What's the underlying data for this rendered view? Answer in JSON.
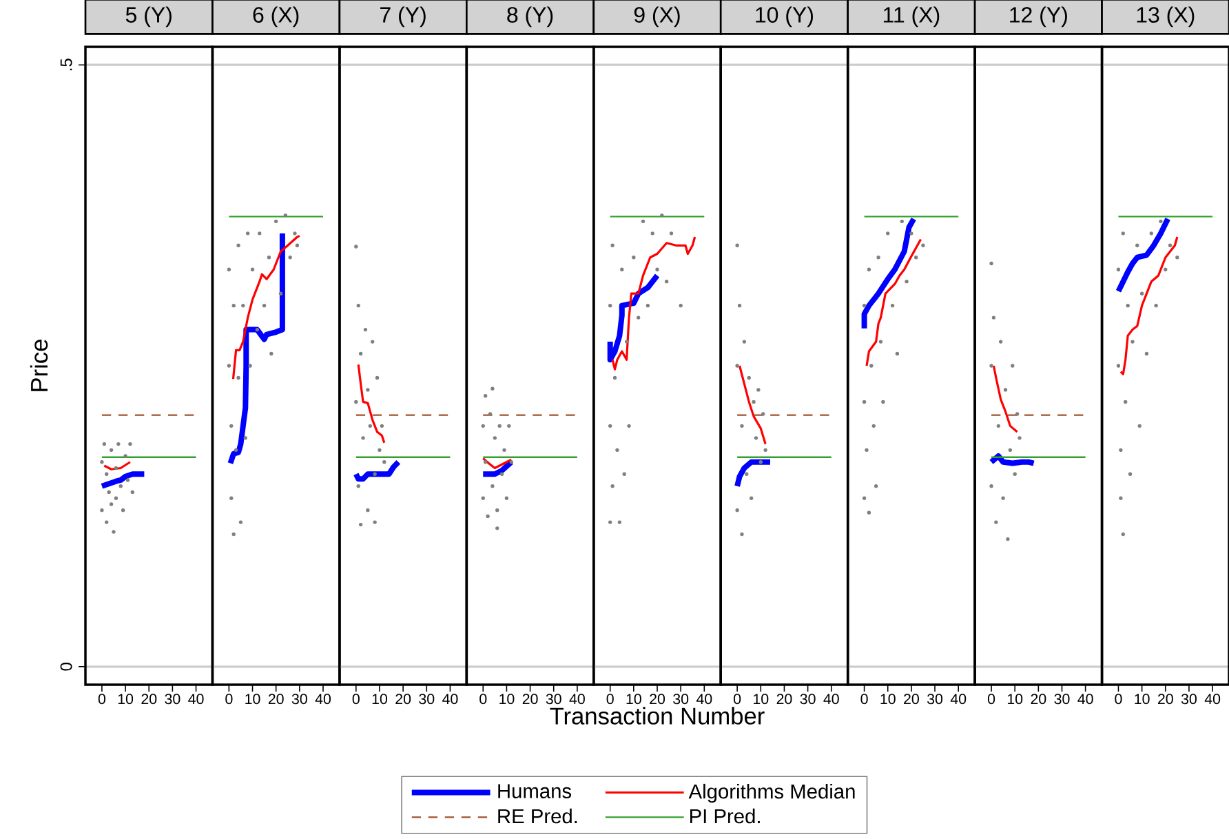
{
  "chart_data": [
    {
      "type": "line",
      "title": "5 (Y)",
      "ylabel": "Price",
      "xlim": [
        -7,
        47
      ],
      "ylim": [
        -0.015,
        0.515
      ],
      "xticks": [
        0,
        10,
        20,
        30,
        40
      ],
      "yticks": [
        0,
        {
          "value": 0.5,
          "label": ".5"
        }
      ],
      "grid": "y",
      "series": [
        {
          "type": "scatter",
          "color": "#7f7f7f",
          "x": [
            0,
            0,
            1,
            2,
            2,
            3,
            4,
            4,
            5,
            6,
            6,
            7,
            8,
            9,
            10,
            11,
            12,
            13
          ],
          "values": [
            0.17,
            0.13,
            0.185,
            0.12,
            0.16,
            0.145,
            0.18,
            0.135,
            0.112,
            0.165,
            0.14,
            0.185,
            0.15,
            0.13,
            0.175,
            0.155,
            0.185,
            0.145
          ]
        },
        {
          "color": "#0000ff",
          "x": [
            0,
            3,
            6,
            8,
            10,
            13,
            18
          ],
          "values": [
            0.15,
            0.152,
            0.154,
            0.155,
            0.158,
            0.16,
            0.16
          ]
        },
        {
          "color": "#ff0000",
          "x": [
            1,
            4,
            8,
            12
          ],
          "values": [
            0.167,
            0.164,
            0.165,
            0.17
          ]
        },
        {
          "color": "#a0522d",
          "line_style": "dashed",
          "x": [
            0,
            40
          ],
          "values": [
            0.209,
            0.209
          ]
        },
        {
          "color": "#33a02c",
          "x": [
            0,
            40
          ],
          "values": [
            0.174,
            0.174
          ]
        }
      ]
    },
    {
      "type": "line",
      "title": "6 (X)",
      "xlim": [
        -7,
        47
      ],
      "ylim": [
        -0.015,
        0.515
      ],
      "xticks": [
        0,
        10,
        20,
        30,
        40
      ],
      "yticks": [
        0,
        0.5
      ],
      "grid": "y",
      "tick_labels": "x",
      "series": [
        {
          "type": "scatter",
          "color": "#7f7f7f",
          "x": [
            0,
            0,
            1,
            1,
            2,
            2,
            3,
            4,
            4,
            5,
            6,
            7,
            8,
            9,
            10,
            12,
            13,
            15,
            17,
            18,
            20,
            22,
            24,
            26,
            28,
            29
          ],
          "values": [
            0.25,
            0.33,
            0.14,
            0.2,
            0.3,
            0.11,
            0.18,
            0.35,
            0.24,
            0.12,
            0.3,
            0.19,
            0.36,
            0.25,
            0.33,
            0.28,
            0.36,
            0.3,
            0.34,
            0.26,
            0.37,
            0.31,
            0.375,
            0.34,
            0.36,
            0.35
          ]
        },
        {
          "color": "#0000ff",
          "x": [
            0.6,
            2,
            4,
            5,
            6,
            7,
            7.3,
            7.3,
            9,
            12,
            15,
            16,
            20,
            22.7,
            22.7
          ],
          "values": [
            0.169,
            0.177,
            0.178,
            0.185,
            0.2,
            0.215,
            0.25,
            0.28,
            0.28,
            0.28,
            0.272,
            0.276,
            0.278,
            0.28,
            0.36
          ]
        },
        {
          "color": "#ff0000",
          "x": [
            1.8,
            3,
            4.5,
            6,
            8,
            10,
            13,
            14,
            16,
            19,
            22,
            25,
            29,
            30
          ],
          "values": [
            0.239,
            0.263,
            0.263,
            0.27,
            0.29,
            0.305,
            0.32,
            0.326,
            0.322,
            0.33,
            0.345,
            0.35,
            0.357,
            0.358
          ]
        },
        {
          "color": "#33a02c",
          "x": [
            0,
            40
          ],
          "values": [
            0.374,
            0.374
          ]
        }
      ]
    },
    {
      "type": "line",
      "title": "7 (Y)",
      "xlim": [
        -7,
        47
      ],
      "ylim": [
        -0.015,
        0.515
      ],
      "xticks": [
        0,
        10,
        20,
        30,
        40
      ],
      "yticks": [
        0,
        0.5
      ],
      "grid": "y",
      "tick_labels": "x",
      "series": [
        {
          "type": "scatter",
          "color": "#7f7f7f",
          "x": [
            0,
            0,
            1,
            1,
            2,
            2,
            3,
            4,
            5,
            5,
            6,
            7,
            8,
            8,
            9,
            10,
            11,
            12
          ],
          "values": [
            0.349,
            0.22,
            0.3,
            0.15,
            0.26,
            0.118,
            0.19,
            0.28,
            0.13,
            0.23,
            0.2,
            0.27,
            0.16,
            0.12,
            0.24,
            0.18,
            0.2,
            0.17
          ]
        },
        {
          "color": "#0000ff",
          "x": [
            0,
            1,
            3,
            5,
            10,
            14,
            16,
            18
          ],
          "values": [
            0.16,
            0.156,
            0.156,
            0.16,
            0.16,
            0.16,
            0.166,
            0.17
          ]
        },
        {
          "color": "#ff0000",
          "x": [
            1,
            2,
            3,
            5,
            7,
            9,
            11,
            12
          ],
          "values": [
            0.251,
            0.235,
            0.22,
            0.219,
            0.205,
            0.195,
            0.192,
            0.186
          ]
        },
        {
          "color": "#a0522d",
          "line_style": "dashed",
          "x": [
            0,
            40
          ],
          "values": [
            0.209,
            0.209
          ]
        },
        {
          "color": "#33a02c",
          "x": [
            0,
            40
          ],
          "values": [
            0.174,
            0.174
          ]
        }
      ]
    },
    {
      "type": "line",
      "title": "8 (Y)",
      "xlim": [
        -7,
        47
      ],
      "ylim": [
        -0.015,
        0.515
      ],
      "xticks": [
        0,
        10,
        20,
        30,
        40
      ],
      "yticks": [
        0,
        0.5
      ],
      "grid": "y",
      "tick_labels": "x",
      "series": [
        {
          "type": "scatter",
          "color": "#7f7f7f",
          "x": [
            0,
            0,
            1,
            1,
            2,
            3,
            4,
            4,
            5,
            6,
            6,
            7,
            8,
            9,
            10,
            11,
            12
          ],
          "values": [
            0.2,
            0.14,
            0.225,
            0.17,
            0.125,
            0.21,
            0.15,
            0.231,
            0.19,
            0.13,
            0.115,
            0.2,
            0.16,
            0.18,
            0.14,
            0.2,
            0.17
          ]
        },
        {
          "color": "#0000ff",
          "x": [
            0,
            5,
            8,
            12
          ],
          "values": [
            0.16,
            0.16,
            0.163,
            0.17
          ]
        },
        {
          "color": "#ff0000",
          "x": [
            0,
            3,
            5,
            8,
            12
          ],
          "values": [
            0.173,
            0.168,
            0.165,
            0.168,
            0.172
          ]
        },
        {
          "color": "#a0522d",
          "line_style": "dashed",
          "x": [
            0,
            40
          ],
          "values": [
            0.209,
            0.209
          ]
        },
        {
          "color": "#33a02c",
          "x": [
            0,
            40
          ],
          "values": [
            0.174,
            0.174
          ]
        }
      ]
    },
    {
      "type": "line",
      "title": "9 (X)",
      "xlabel": "Transaction Number",
      "xlim": [
        -7,
        47
      ],
      "ylim": [
        -0.015,
        0.515
      ],
      "xticks": [
        0,
        10,
        20,
        30,
        40
      ],
      "yticks": [
        0,
        0.5
      ],
      "grid": "y",
      "tick_labels": "x",
      "series": [
        {
          "type": "scatter",
          "color": "#7f7f7f",
          "x": [
            0,
            0,
            0,
            1,
            1,
            2,
            3,
            4,
            5,
            6,
            7,
            8,
            10,
            12,
            14,
            16,
            18,
            20,
            22,
            24,
            26,
            30
          ],
          "values": [
            0.12,
            0.2,
            0.3,
            0.15,
            0.35,
            0.24,
            0.18,
            0.12,
            0.33,
            0.16,
            0.27,
            0.2,
            0.34,
            0.29,
            0.37,
            0.3,
            0.36,
            0.33,
            0.375,
            0.32,
            0.36,
            0.3
          ]
        },
        {
          "color": "#0000ff",
          "x": [
            0,
            0,
            2,
            4,
            5,
            5,
            10,
            12,
            16,
            20
          ],
          "values": [
            0.27,
            0.255,
            0.262,
            0.275,
            0.292,
            0.3,
            0.302,
            0.31,
            0.315,
            0.325
          ]
        },
        {
          "color": "#ff0000",
          "x": [
            1,
            2,
            3,
            5,
            7,
            8,
            9,
            12,
            14,
            17,
            20,
            24,
            28,
            32,
            33,
            35,
            36
          ],
          "values": [
            0.255,
            0.247,
            0.255,
            0.262,
            0.255,
            0.29,
            0.31,
            0.31,
            0.325,
            0.34,
            0.343,
            0.352,
            0.35,
            0.35,
            0.343,
            0.35,
            0.357
          ]
        },
        {
          "color": "#33a02c",
          "x": [
            0,
            40
          ],
          "values": [
            0.374,
            0.374
          ]
        }
      ]
    },
    {
      "type": "line",
      "title": "10 (Y)",
      "xlim": [
        -7,
        47
      ],
      "ylim": [
        -0.015,
        0.515
      ],
      "xticks": [
        0,
        10,
        20,
        30,
        40
      ],
      "yticks": [
        0,
        0.5
      ],
      "grid": "y",
      "tick_labels": "x",
      "legend": "bottom",
      "series": [
        {
          "type": "scatter",
          "color": "#7f7f7f",
          "x": [
            0,
            0,
            0,
            1,
            2,
            2,
            3,
            4,
            5,
            6,
            7,
            8,
            9,
            10,
            11,
            12
          ],
          "values": [
            0.35,
            0.25,
            0.13,
            0.3,
            0.11,
            0.2,
            0.27,
            0.16,
            0.24,
            0.14,
            0.22,
            0.19,
            0.23,
            0.17,
            0.21,
            0.18
          ]
        },
        {
          "name": "Humans",
          "color": "#0000ff",
          "x": [
            0,
            1,
            3,
            6,
            10,
            14
          ],
          "values": [
            0.15,
            0.158,
            0.165,
            0.17,
            0.17,
            0.17
          ]
        },
        {
          "name": "Algorithms Median",
          "color": "#ff0000",
          "x": [
            1,
            3,
            5,
            7,
            10,
            12
          ],
          "values": [
            0.25,
            0.235,
            0.22,
            0.208,
            0.198,
            0.185
          ]
        },
        {
          "name": "RE Pred.",
          "color": "#a0522d",
          "line_style": "dashed",
          "x": [
            0,
            40
          ],
          "values": [
            0.209,
            0.209
          ]
        },
        {
          "name": "PI Pred.",
          "color": "#33a02c",
          "x": [
            0,
            40
          ],
          "values": [
            0.174,
            0.174
          ]
        }
      ]
    },
    {
      "type": "line",
      "title": "11 (X)",
      "xlim": [
        -7,
        47
      ],
      "ylim": [
        -0.015,
        0.515
      ],
      "xticks": [
        0,
        10,
        20,
        30,
        40
      ],
      "yticks": [
        0,
        0.5
      ],
      "grid": "y",
      "tick_labels": "x",
      "series": [
        {
          "type": "scatter",
          "color": "#7f7f7f",
          "x": [
            0,
            0,
            0,
            1,
            2,
            2,
            3,
            4,
            5,
            6,
            7,
            8,
            10,
            12,
            14,
            16,
            18,
            20,
            22,
            25
          ],
          "values": [
            0.14,
            0.22,
            0.3,
            0.18,
            0.128,
            0.33,
            0.25,
            0.2,
            0.15,
            0.34,
            0.27,
            0.22,
            0.36,
            0.3,
            0.26,
            0.37,
            0.32,
            0.36,
            0.34,
            0.35
          ]
        },
        {
          "color": "#0000ff",
          "x": [
            0,
            0,
            2,
            6,
            10,
            13,
            17,
            19,
            21
          ],
          "values": [
            0.281,
            0.293,
            0.3,
            0.31,
            0.322,
            0.33,
            0.345,
            0.365,
            0.372
          ]
        },
        {
          "color": "#ff0000",
          "x": [
            1,
            2,
            5,
            6,
            7,
            9,
            13,
            15,
            17,
            20,
            24
          ],
          "values": [
            0.25,
            0.262,
            0.27,
            0.285,
            0.29,
            0.31,
            0.318,
            0.325,
            0.33,
            0.341,
            0.355
          ]
        },
        {
          "color": "#33a02c",
          "x": [
            0,
            40
          ],
          "values": [
            0.374,
            0.374
          ]
        }
      ]
    },
    {
      "type": "line",
      "title": "12 (Y)",
      "xlim": [
        -7,
        47
      ],
      "ylim": [
        -0.015,
        0.515
      ],
      "xticks": [
        0,
        10,
        20,
        30,
        40
      ],
      "yticks": [
        0,
        0.5
      ],
      "grid": "y",
      "tick_labels": "x",
      "series": [
        {
          "type": "scatter",
          "color": "#7f7f7f",
          "x": [
            0,
            0,
            0,
            1,
            2,
            3,
            4,
            5,
            6,
            7,
            8,
            9,
            10,
            11,
            12
          ],
          "values": [
            0.335,
            0.25,
            0.15,
            0.29,
            0.12,
            0.2,
            0.27,
            0.14,
            0.23,
            0.106,
            0.18,
            0.25,
            0.16,
            0.21,
            0.19
          ]
        },
        {
          "color": "#0000ff",
          "x": [
            0,
            3,
            5,
            9,
            13,
            16,
            18
          ],
          "values": [
            0.17,
            0.175,
            0.17,
            0.169,
            0.17,
            0.17,
            0.169
          ]
        },
        {
          "color": "#ff0000",
          "x": [
            1,
            2,
            4,
            6,
            8,
            11
          ],
          "values": [
            0.25,
            0.24,
            0.222,
            0.212,
            0.2,
            0.195
          ]
        },
        {
          "color": "#a0522d",
          "line_style": "dashed",
          "x": [
            0,
            40
          ],
          "values": [
            0.209,
            0.209
          ]
        },
        {
          "color": "#33a02c",
          "x": [
            0,
            40
          ],
          "values": [
            0.174,
            0.174
          ]
        }
      ]
    },
    {
      "type": "line",
      "title": "13 (X)",
      "xlim": [
        -7,
        47
      ],
      "ylim": [
        -0.015,
        0.515
      ],
      "xticks": [
        0,
        10,
        20,
        30,
        40
      ],
      "yticks": [
        0,
        0.5
      ],
      "grid": "y",
      "tick_labels": "x",
      "series": [
        {
          "type": "scatter",
          "color": "#7f7f7f",
          "x": [
            0,
            0,
            1,
            1,
            2,
            2,
            3,
            4,
            5,
            6,
            8,
            9,
            10,
            12,
            14,
            16,
            18,
            20,
            22,
            25
          ],
          "values": [
            0.33,
            0.25,
            0.18,
            0.14,
            0.36,
            0.11,
            0.22,
            0.3,
            0.16,
            0.27,
            0.35,
            0.2,
            0.31,
            0.26,
            0.36,
            0.3,
            0.37,
            0.33,
            0.35,
            0.34
          ]
        },
        {
          "color": "#0000ff",
          "x": [
            0,
            2,
            4,
            6,
            8,
            12,
            15,
            18,
            21
          ],
          "values": [
            0.312,
            0.32,
            0.328,
            0.335,
            0.34,
            0.342,
            0.35,
            0.36,
            0.372
          ]
        },
        {
          "color": "#ff0000",
          "x": [
            1,
            2,
            3,
            4,
            6,
            8,
            10,
            12,
            14,
            17,
            20,
            24,
            25
          ],
          "values": [
            0.245,
            0.243,
            0.255,
            0.275,
            0.28,
            0.283,
            0.3,
            0.31,
            0.32,
            0.325,
            0.34,
            0.35,
            0.357
          ]
        },
        {
          "color": "#33a02c",
          "x": [
            0,
            40
          ],
          "values": [
            0.374,
            0.374
          ]
        }
      ]
    }
  ]
}
